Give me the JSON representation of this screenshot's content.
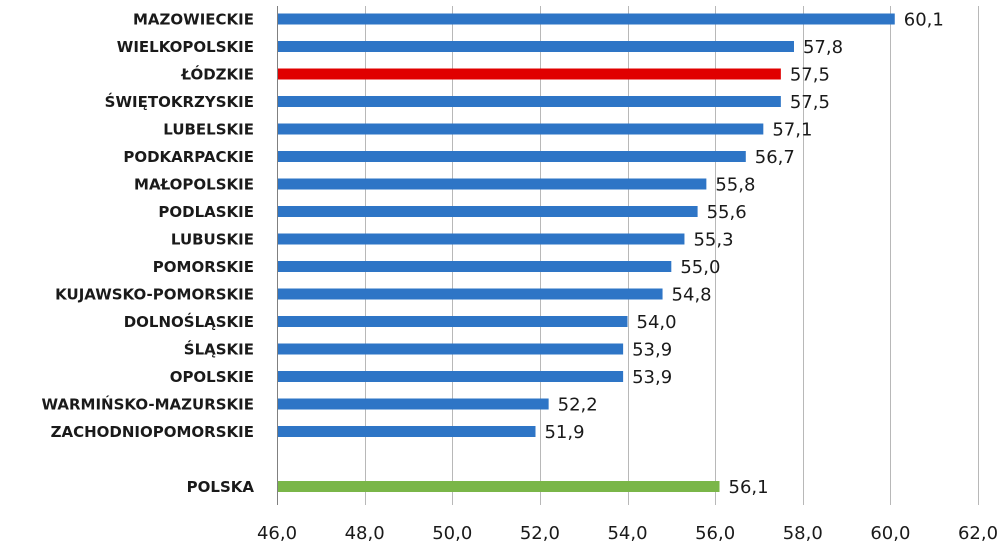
{
  "chart_data": {
    "type": "bar",
    "orientation": "horizontal",
    "categories": [
      "MAZOWIECKIE",
      "WIELKOPOLSKIE",
      "ŁÓDZKIE",
      "ŚWIĘTOKRZYSKIE",
      "LUBELSKIE",
      "PODKARPACKIE",
      "MAŁOPOLSKIE",
      "PODLASKIE",
      "LUBUSKIE",
      "POMORSKIE",
      "KUJAWSKO-POMORSKIE",
      "DOLNOŚLĄSKIE",
      "ŚLĄSKIE",
      "OPOLSKIE",
      "WARMIŃSKO-MAZURSKIE",
      "ZACHODNIOPOMORSKIE",
      "",
      "POLSKA"
    ],
    "values": [
      60.1,
      57.8,
      57.5,
      57.5,
      57.1,
      56.7,
      55.8,
      55.6,
      55.3,
      55.0,
      54.8,
      54.0,
      53.9,
      53.9,
      52.2,
      51.9,
      null,
      56.1
    ],
    "value_labels": [
      "60,1",
      "57,8",
      "57,5",
      "57,5",
      "57,1",
      "56,7",
      "55,8",
      "55,6",
      "55,3",
      "55,0",
      "54,8",
      "54,0",
      "53,9",
      "53,9",
      "52,2",
      "51,9",
      "",
      "56,1"
    ],
    "bar_colors": [
      "#2e75c6",
      "#2e75c6",
      "#e00000",
      "#2e75c6",
      "#2e75c6",
      "#2e75c6",
      "#2e75c6",
      "#2e75c6",
      "#2e75c6",
      "#2e75c6",
      "#2e75c6",
      "#2e75c6",
      "#2e75c6",
      "#2e75c6",
      "#2e75c6",
      "#2e75c6",
      "#2e75c6",
      "#7ab648"
    ],
    "xlim": [
      46.0,
      62.0
    ],
    "xticks": [
      46.0,
      48.0,
      50.0,
      52.0,
      54.0,
      56.0,
      58.0,
      60.0,
      62.0
    ],
    "xtick_labels": [
      "46,0",
      "48,0",
      "50,0",
      "52,0",
      "54,0",
      "56,0",
      "58,0",
      "60,0",
      "62,0"
    ],
    "grid": "vertical",
    "legend": "none",
    "title": "",
    "xlabel": "",
    "ylabel": ""
  }
}
